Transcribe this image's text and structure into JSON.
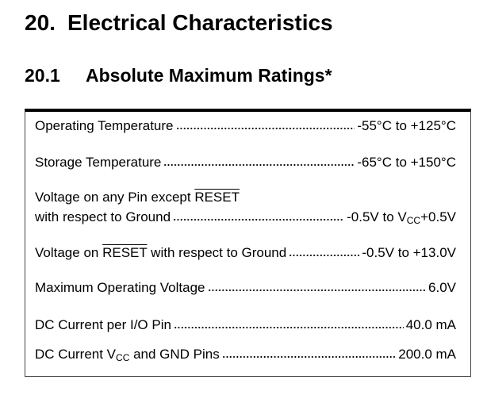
{
  "section": {
    "number": "20.",
    "title": "Electrical Characteristics"
  },
  "subsection": {
    "number": "20.1",
    "title": "Absolute Maximum Ratings*"
  },
  "ratings": [
    {
      "label": "Operating Temperature",
      "value": "-55°C to +125°C"
    },
    {
      "label": "Storage Temperature",
      "value": "-65°C to +150°C"
    },
    {
      "label_parts": [
        "Voltage on any Pin except ",
        "RESET"
      ],
      "label_line2": "with respect to Ground",
      "value_parts": [
        "-0.5V to V",
        "CC",
        "+0.5V"
      ]
    },
    {
      "label_parts": [
        "Voltage on ",
        "RESET",
        " with respect to Ground"
      ],
      "value": "-0.5V to +13.0V"
    },
    {
      "label": "Maximum Operating Voltage",
      "value": "6.0V"
    },
    {
      "label": "DC Current per I/O Pin",
      "value": "40.0 mA"
    },
    {
      "label_parts": [
        "DC Current V",
        "CC",
        " and GND Pins"
      ],
      "value": "200.0 mA"
    }
  ]
}
